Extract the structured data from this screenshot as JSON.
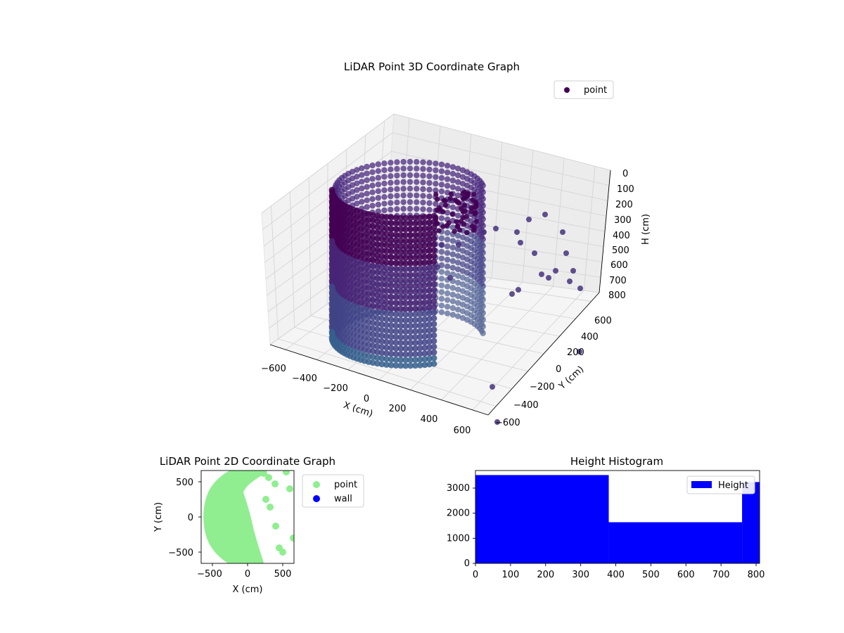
{
  "chart_data": [
    {
      "type": "scatter",
      "projection": "3d",
      "title": "LiDAR Point 3D Coordinate Graph",
      "xlabel": "X (cm)",
      "ylabel": "Y (cm)",
      "zlabel": "H (cm)",
      "xticks": [
        "−600",
        "−400",
        "−200",
        "0",
        "200",
        "400",
        "600"
      ],
      "yticks": [
        "−600",
        "−400",
        "−200",
        "0",
        "200",
        "400",
        "600"
      ],
      "zticks": [
        "0",
        "100",
        "200",
        "300",
        "400",
        "500",
        "600",
        "700",
        "800"
      ],
      "xlim": [
        -650,
        650
      ],
      "ylim": [
        -650,
        650
      ],
      "zlim": [
        800,
        0
      ],
      "z_inverted": true,
      "grid": true,
      "legend": {
        "position": "top-right",
        "entries": [
          "point"
        ]
      },
      "colormap": "viridis",
      "series": [
        {
          "name": "point",
          "shape": "cylindrical wall of points with radius about 600 cm, spanning height 0-800 cm, open toward +X, with scattered points near x 200-600",
          "radius": 600,
          "height_range": [
            0,
            800
          ],
          "color": "#482878"
        }
      ]
    },
    {
      "type": "scatter",
      "title": "LiDAR Point 2D Coordinate Graph",
      "xlabel": "X (cm)",
      "ylabel": "Y (cm)",
      "xticks": [
        "−500",
        "0",
        "500"
      ],
      "yticks": [
        "−500",
        "0",
        "500"
      ],
      "xlim": [
        -660,
        660
      ],
      "ylim": [
        -660,
        660
      ],
      "legend": {
        "position": "outside-right",
        "entries": [
          "point",
          "wall"
        ]
      },
      "series": [
        {
          "name": "point",
          "color": "#90ee90"
        },
        {
          "name": "wall",
          "color": "#0000ff"
        }
      ],
      "scattered_points": [
        [
          230,
          620
        ],
        [
          300,
          560
        ],
        [
          390,
          470
        ],
        [
          260,
          250
        ],
        [
          320,
          140
        ],
        [
          400,
          -130
        ],
        [
          450,
          -440
        ],
        [
          500,
          -500
        ],
        [
          650,
          -300
        ],
        [
          550,
          640
        ],
        [
          600,
          400
        ]
      ]
    },
    {
      "type": "bar",
      "title": "Height Histogram",
      "legend": {
        "position": "top-right",
        "entries": [
          "Height"
        ]
      },
      "color": "#0000ff",
      "xticks": [
        "0",
        "100",
        "200",
        "300",
        "400",
        "500",
        "600",
        "700",
        "800"
      ],
      "yticks": [
        "0",
        "1000",
        "2000",
        "3000"
      ],
      "xlim": [
        0,
        810
      ],
      "ylim": [
        0,
        3700
      ],
      "series": [
        {
          "name": "Height",
          "bins": [
            {
              "from": 0,
              "to": 380,
              "value": 3520
            },
            {
              "from": 380,
              "to": 760,
              "value": 1640
            },
            {
              "from": 760,
              "to": 810,
              "value": 3240
            }
          ]
        }
      ]
    }
  ]
}
